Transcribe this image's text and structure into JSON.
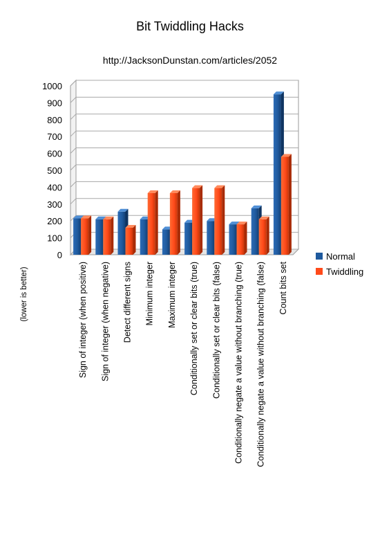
{
  "chart_data": {
    "type": "bar",
    "title": "Bit Twiddling Hacks",
    "subtitle": "http://JacksonDunstan.com/articles/2052",
    "ylabel": "(lower is better)",
    "xlabel": "",
    "ylim": [
      0,
      1000
    ],
    "yticks": [
      0,
      100,
      200,
      300,
      400,
      500,
      600,
      700,
      800,
      900,
      1000
    ],
    "grid": true,
    "legend_position": "right",
    "categories": [
      "Sign of integer (when positive)",
      "Sign of integer (when negative)",
      "Detect different signs",
      "Minimum integer",
      "Maximum integer",
      "Conditionally set or clear bits (true)",
      "Conditionally set or clear bits (false)",
      "Conditionally negate a value without branching (true)",
      "Conditionally negate a value without branching (false)",
      "Count bits set"
    ],
    "series": [
      {
        "name": "Normal",
        "color": "#1f5a9e",
        "values": [
          215,
          210,
          255,
          210,
          150,
          190,
          200,
          180,
          275,
          950
        ]
      },
      {
        "name": "Twiddling",
        "color": "#ff4a1a",
        "values": [
          215,
          210,
          160,
          365,
          365,
          395,
          395,
          180,
          210,
          580
        ]
      }
    ]
  }
}
